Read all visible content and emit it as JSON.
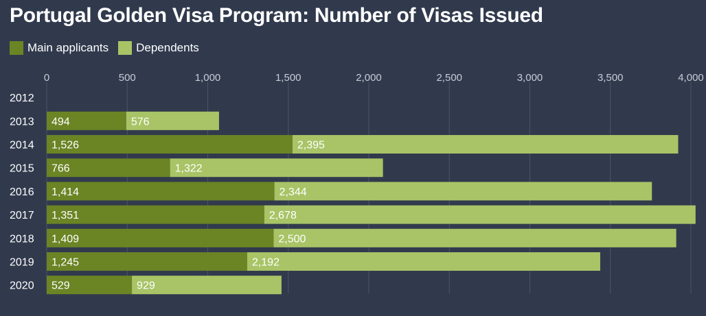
{
  "chart_data": {
    "type": "bar",
    "orientation": "horizontal",
    "stacked": true,
    "title": "Portugal Golden Visa Program: Number of Visas Issued",
    "categories": [
      "2012",
      "2013",
      "2014",
      "2015",
      "2016",
      "2017",
      "2018",
      "2019",
      "2020"
    ],
    "series": [
      {
        "name": "Main applicants",
        "color": "#6b8424",
        "values": [
          null,
          494,
          1526,
          766,
          1414,
          1351,
          1409,
          1245,
          529
        ],
        "labels": [
          "",
          "494",
          "1,526",
          "766",
          "1,414",
          "1,351",
          "1,409",
          "1,245",
          "529"
        ]
      },
      {
        "name": "Dependents",
        "color": "#a8c466",
        "values": [
          null,
          576,
          2395,
          1322,
          2344,
          2678,
          2500,
          2192,
          929
        ],
        "labels": [
          "",
          "576",
          "2,395",
          "1,322",
          "2,344",
          "2,678",
          "2,500",
          "2,192",
          "929"
        ]
      }
    ],
    "xlim": [
      0,
      4000
    ],
    "xticks": [
      0,
      500,
      1000,
      1500,
      2000,
      2500,
      3000,
      3500,
      4000
    ],
    "xtick_labels": [
      "0",
      "500",
      "1,000",
      "1,500",
      "2,000",
      "2,500",
      "3,000",
      "3,500",
      "4,000"
    ],
    "grid": true,
    "legend_position": "top-left",
    "xlabel": "",
    "ylabel": ""
  }
}
